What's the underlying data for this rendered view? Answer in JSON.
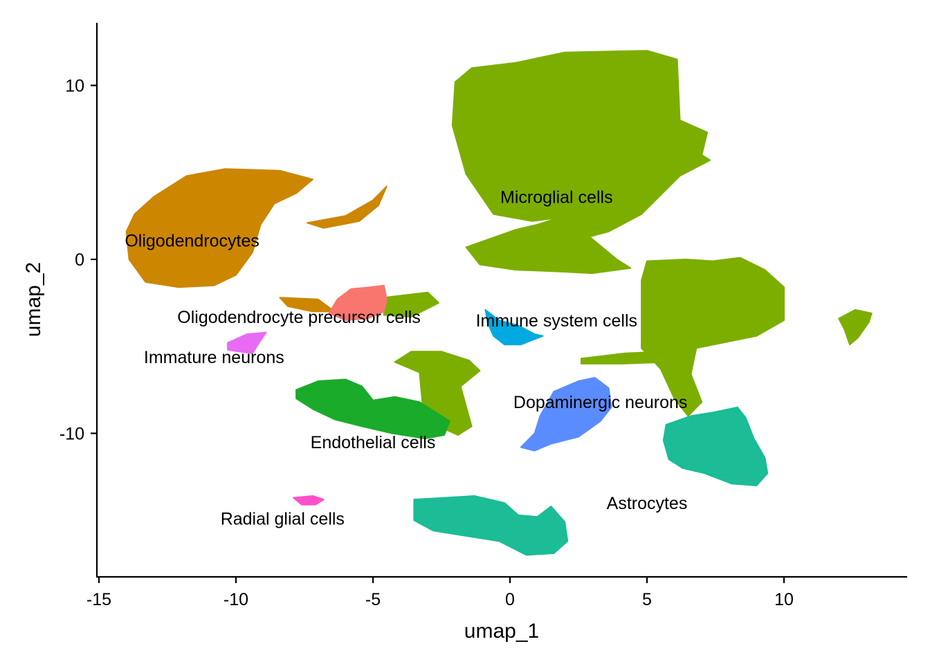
{
  "chart_data": {
    "type": "scatter",
    "title": "",
    "xlabel": "umap_1",
    "ylabel": "umap_2",
    "xlim": [
      -15.1,
      14.5
    ],
    "ylim": [
      -18.3,
      13.6
    ],
    "xticks": [
      -15,
      -10,
      -5,
      0,
      5,
      10
    ],
    "xtick_labels": [
      "-15",
      "-10",
      "-5",
      "0",
      "5",
      "10"
    ],
    "yticks": [
      -10,
      0,
      10
    ],
    "ytick_labels": [
      "-10",
      "0",
      "10"
    ],
    "grid": false,
    "legend": "none",
    "clusters": [
      {
        "name": "Microglial cells",
        "color": "#7CAE00",
        "label_x": 1.7,
        "label_y": 3.6
      },
      {
        "name": "Oligodendrocytes",
        "color": "#CD8600",
        "label_x": -11.6,
        "label_y": 1.1
      },
      {
        "name": "Oligodendrocyte precursor cells",
        "color": "#F8766D",
        "label_x": -7.7,
        "label_y": -3.3
      },
      {
        "name": "Immature neurons",
        "color": "#E76BF3",
        "label_x": -10.8,
        "label_y": -5.6
      },
      {
        "name": "Immune system cells",
        "color": "#00A9DF",
        "label_x": 1.7,
        "label_y": -3.5
      },
      {
        "name": "Endothelial cells",
        "color": "#1AAB2B",
        "label_x": -5.0,
        "label_y": -10.5
      },
      {
        "name": "Dopaminergic neurons",
        "color": "#5B8CFF",
        "label_x": 3.3,
        "label_y": -8.2
      },
      {
        "name": "Astrocytes",
        "color": "#1BBC96",
        "label_x": 5.0,
        "label_y": -14.0
      },
      {
        "name": "Radial glial cells",
        "color": "#FF4FCB",
        "label_x": -8.3,
        "label_y": -14.9
      }
    ]
  }
}
